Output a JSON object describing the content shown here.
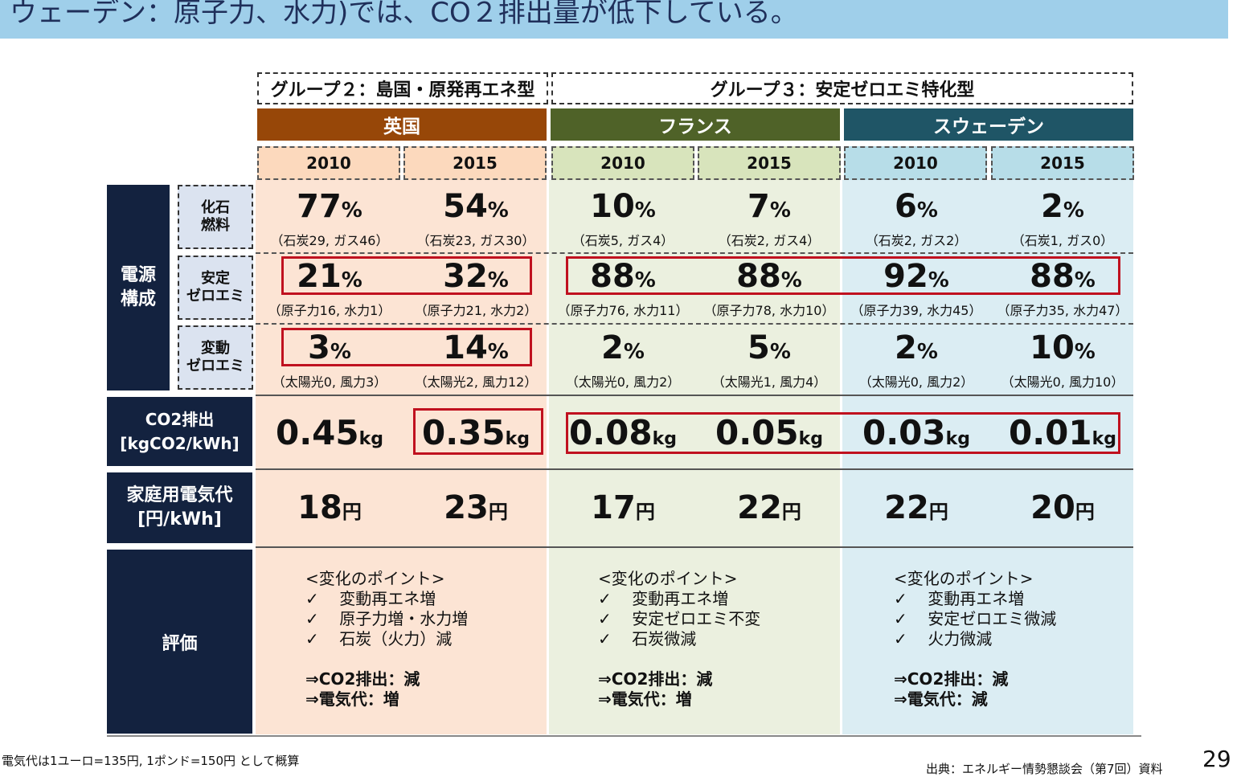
{
  "title": "ウェーデン：原子力、水力)では、CO２排出量が低下している。",
  "groups": {
    "g2": "グループ２：島国・原発再エネ型",
    "g3": "グループ３：安定ゼロエミ特化型"
  },
  "countries": [
    {
      "name": "英国",
      "color": "#974708"
    },
    {
      "name": "フランス",
      "color": "#4f6228"
    },
    {
      "name": "スウェーデン",
      "color": "#1f5566"
    }
  ],
  "years": [
    "2010",
    "2015",
    "2010",
    "2015",
    "2010",
    "2015"
  ],
  "row_labels": {
    "mix": "電源\n構成",
    "fossil": "化石\n燃料",
    "stable": "安定\nゼロエミ",
    "variable": "変動\nゼロエミ",
    "co2": "CO2排出\n[kgCO2/kWh]",
    "price": "家庭用電気代\n[円/kWh]",
    "eval": "評価"
  },
  "pct_unit": "%",
  "fossil": [
    {
      "v": "77",
      "d": "（石炭29, ガス46）"
    },
    {
      "v": "54",
      "d": "（石炭23, ガス30）"
    },
    {
      "v": "10",
      "d": "（石炭5, ガス4）"
    },
    {
      "v": "7",
      "d": "（石炭2, ガス4）"
    },
    {
      "v": "6",
      "d": "（石炭2, ガス2）"
    },
    {
      "v": "2",
      "d": "（石炭1, ガス0）"
    }
  ],
  "stable": [
    {
      "v": "21",
      "d": "（原子力16, 水力1）"
    },
    {
      "v": "32",
      "d": "（原子力21, 水力2）"
    },
    {
      "v": "88",
      "d": "（原子力76, 水力11）"
    },
    {
      "v": "88",
      "d": "（原子力78, 水力10）"
    },
    {
      "v": "92",
      "d": "（原子力39, 水力45）"
    },
    {
      "v": "88",
      "d": "（原子力35, 水力47）"
    }
  ],
  "variable": [
    {
      "v": "3",
      "d": "（太陽光0, 風力3）"
    },
    {
      "v": "14",
      "d": "（太陽光2, 風力12）"
    },
    {
      "v": "2",
      "d": "（太陽光0, 風力2）"
    },
    {
      "v": "5",
      "d": "（太陽光1, 風力4）"
    },
    {
      "v": "2",
      "d": "（太陽光0, 風力2）"
    },
    {
      "v": "10",
      "d": "（太陽光0, 風力10）"
    }
  ],
  "co2_unit": "kg",
  "co2": [
    "0.45",
    "0.35",
    "0.08",
    "0.05",
    "0.03",
    "0.01"
  ],
  "price_unit": "円",
  "price": [
    "18",
    "23",
    "17",
    "22",
    "22",
    "20"
  ],
  "evaluation": [
    {
      "head": "<変化のポイント>",
      "points": [
        "変動再エネ増",
        "原子力増・水力増",
        "石炭（火力）減"
      ],
      "r1": "⇒CO2排出：減",
      "r2": "⇒電気代：増"
    },
    {
      "head": "<変化のポイント>",
      "points": [
        "変動再エネ増",
        "安定ゼロエミ不変",
        "石炭微減"
      ],
      "r1": "⇒CO2排出：減",
      "r2": "⇒電気代：増"
    },
    {
      "head": "<変化のポイント>",
      "points": [
        "変動再エネ増",
        "安定ゼロエミ微減",
        "火力微減"
      ],
      "r1": "⇒CO2排出：減",
      "r2": "⇒電気代：減"
    }
  ],
  "check": "✓",
  "footnote_left": "電気代は1ユーロ=135円, 1ポンド=150円 として概算",
  "footnote_right": "出典：エネルギー情勢懇談会（第7回）資料",
  "page_number": "29"
}
